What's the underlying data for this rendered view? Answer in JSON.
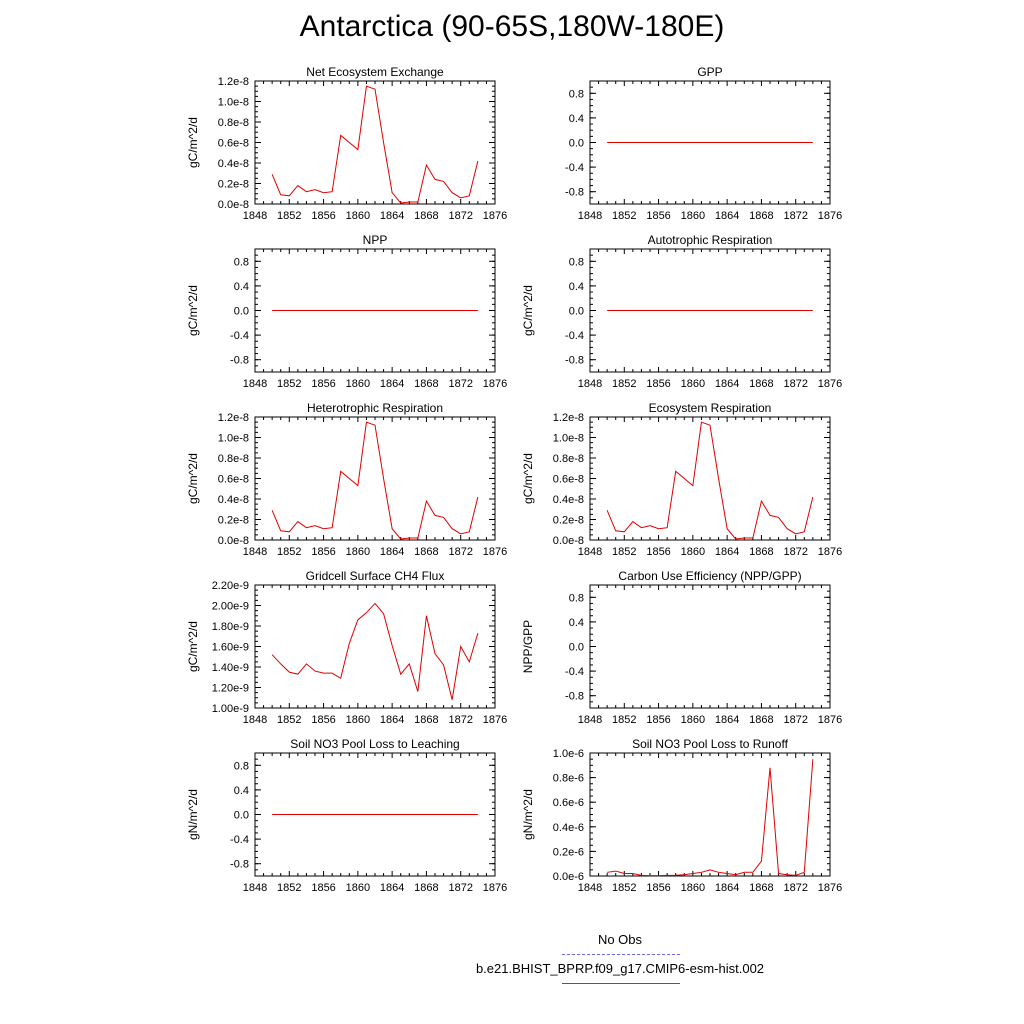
{
  "figure": {
    "title": "Antarctica (90-65S,180W-180E)",
    "legend": [
      {
        "label": "No Obs",
        "color": "#6a6ae6",
        "style": "dashed"
      },
      {
        "label": "b.e21.BHIST_BPRP.f09_g17.CMIP6-esm-hist.002",
        "color": "#e02020",
        "style": "solid"
      }
    ],
    "line_color": "#e00000"
  },
  "chart_data": [
    {
      "type": "line",
      "title": "Net Ecosystem Exchange",
      "ylabel": "gC/m^2/d",
      "xlim": [
        1848,
        1876
      ],
      "ylim": [
        0.0,
        1.2e-08
      ],
      "xticks": [
        "1848",
        "1852",
        "1856",
        "1860",
        "1864",
        "1868",
        "1872",
        "1876"
      ],
      "yticks": [
        0.0,
        2e-09,
        4e-09,
        6e-09,
        8e-09,
        1e-08,
        1.2e-08
      ],
      "yticklabels": [
        "0.0e-8",
        "0.2e-8",
        "0.4e-8",
        "0.6e-8",
        "0.8e-8",
        "1.0e-8",
        "1.2e-8"
      ],
      "x": [
        1850,
        1851,
        1852,
        1853,
        1854,
        1855,
        1856,
        1857,
        1858,
        1859,
        1860,
        1861,
        1862,
        1863,
        1864,
        1865,
        1866,
        1867,
        1868,
        1869,
        1870,
        1871,
        1872,
        1873,
        1874
      ],
      "y": [
        2.9e-09,
        9e-10,
        8e-10,
        1.8e-09,
        1.2e-09,
        1.4e-09,
        1.1e-09,
        1.2e-09,
        6.7e-09,
        6e-09,
        5.3e-09,
        1.15e-08,
        1.12e-08,
        6e-09,
        1.1e-09,
        1e-10,
        2e-10,
        2e-10,
        3.8e-09,
        2.4e-09,
        2.2e-09,
        1.1e-09,
        6e-10,
        8e-10,
        4.2e-09
      ]
    },
    {
      "type": "line",
      "title": "GPP",
      "ylabel": "",
      "xlim": [
        1848,
        1876
      ],
      "ylim": [
        -1.0,
        1.0
      ],
      "xticks": [
        "1848",
        "1852",
        "1856",
        "1860",
        "1864",
        "1868",
        "1872",
        "1876"
      ],
      "yticks": [
        -0.8,
        -0.4,
        0.0,
        0.4,
        0.8
      ],
      "yticklabels": [
        "-0.8",
        "-0.4",
        "0.0",
        "0.4",
        "0.8"
      ],
      "x": [
        1850,
        1874
      ],
      "y": [
        0,
        0
      ]
    },
    {
      "type": "line",
      "title": "NPP",
      "ylabel": "gC/m^2/d",
      "xlim": [
        1848,
        1876
      ],
      "ylim": [
        -1.0,
        1.0
      ],
      "xticks": [
        "1848",
        "1852",
        "1856",
        "1860",
        "1864",
        "1868",
        "1872",
        "1876"
      ],
      "yticks": [
        -0.8,
        -0.4,
        0.0,
        0.4,
        0.8
      ],
      "yticklabels": [
        "-0.8",
        "-0.4",
        "0.0",
        "0.4",
        "0.8"
      ],
      "x": [
        1850,
        1874
      ],
      "y": [
        0,
        0
      ]
    },
    {
      "type": "line",
      "title": "Autotrophic Respiration",
      "ylabel": "gC/m^2/d",
      "xlim": [
        1848,
        1876
      ],
      "ylim": [
        -1.0,
        1.0
      ],
      "xticks": [
        "1848",
        "1852",
        "1856",
        "1860",
        "1864",
        "1868",
        "1872",
        "1876"
      ],
      "yticks": [
        -0.8,
        -0.4,
        0.0,
        0.4,
        0.8
      ],
      "yticklabels": [
        "-0.8",
        "-0.4",
        "0.0",
        "0.4",
        "0.8"
      ],
      "x": [
        1850,
        1874
      ],
      "y": [
        0,
        0
      ]
    },
    {
      "type": "line",
      "title": "Heterotrophic Respiration",
      "ylabel": "gC/m^2/d",
      "xlim": [
        1848,
        1876
      ],
      "ylim": [
        0.0,
        1.2e-08
      ],
      "xticks": [
        "1848",
        "1852",
        "1856",
        "1860",
        "1864",
        "1868",
        "1872",
        "1876"
      ],
      "yticks": [
        0.0,
        2e-09,
        4e-09,
        6e-09,
        8e-09,
        1e-08,
        1.2e-08
      ],
      "yticklabels": [
        "0.0e-8",
        "0.2e-8",
        "0.4e-8",
        "0.6e-8",
        "0.8e-8",
        "1.0e-8",
        "1.2e-8"
      ],
      "x": [
        1850,
        1851,
        1852,
        1853,
        1854,
        1855,
        1856,
        1857,
        1858,
        1859,
        1860,
        1861,
        1862,
        1863,
        1864,
        1865,
        1866,
        1867,
        1868,
        1869,
        1870,
        1871,
        1872,
        1873,
        1874
      ],
      "y": [
        2.9e-09,
        9e-10,
        8e-10,
        1.8e-09,
        1.2e-09,
        1.4e-09,
        1.1e-09,
        1.2e-09,
        6.7e-09,
        6e-09,
        5.3e-09,
        1.15e-08,
        1.12e-08,
        6e-09,
        1.1e-09,
        1e-10,
        2e-10,
        2e-10,
        3.8e-09,
        2.4e-09,
        2.2e-09,
        1.1e-09,
        6e-10,
        8e-10,
        4.2e-09
      ]
    },
    {
      "type": "line",
      "title": "Ecosystem Respiration",
      "ylabel": "gC/m^2/d",
      "xlim": [
        1848,
        1876
      ],
      "ylim": [
        0.0,
        1.2e-08
      ],
      "xticks": [
        "1848",
        "1852",
        "1856",
        "1860",
        "1864",
        "1868",
        "1872",
        "1876"
      ],
      "yticks": [
        0.0,
        2e-09,
        4e-09,
        6e-09,
        8e-09,
        1e-08,
        1.2e-08
      ],
      "yticklabels": [
        "0.0e-8",
        "0.2e-8",
        "0.4e-8",
        "0.6e-8",
        "0.8e-8",
        "1.0e-8",
        "1.2e-8"
      ],
      "x": [
        1850,
        1851,
        1852,
        1853,
        1854,
        1855,
        1856,
        1857,
        1858,
        1859,
        1860,
        1861,
        1862,
        1863,
        1864,
        1865,
        1866,
        1867,
        1868,
        1869,
        1870,
        1871,
        1872,
        1873,
        1874
      ],
      "y": [
        2.9e-09,
        9e-10,
        8e-10,
        1.8e-09,
        1.2e-09,
        1.4e-09,
        1.1e-09,
        1.2e-09,
        6.7e-09,
        6e-09,
        5.3e-09,
        1.15e-08,
        1.12e-08,
        6e-09,
        1.1e-09,
        1e-10,
        2e-10,
        2e-10,
        3.8e-09,
        2.4e-09,
        2.2e-09,
        1.1e-09,
        6e-10,
        8e-10,
        4.2e-09
      ]
    },
    {
      "type": "line",
      "title": "Gridcell Surface CH4 Flux",
      "ylabel": "gC/m^2/d",
      "xlim": [
        1848,
        1876
      ],
      "ylim": [
        1e-09,
        2.2e-09
      ],
      "xticks": [
        "1848",
        "1852",
        "1856",
        "1860",
        "1864",
        "1868",
        "1872",
        "1876"
      ],
      "yticks": [
        1e-09,
        1.2e-09,
        1.4e-09,
        1.6e-09,
        1.8e-09,
        2e-09,
        2.2e-09
      ],
      "yticklabels": [
        "1.00e-9",
        "1.20e-9",
        "1.40e-9",
        "1.60e-9",
        "1.80e-9",
        "2.00e-9",
        "2.20e-9"
      ],
      "x": [
        1850,
        1851,
        1852,
        1853,
        1854,
        1855,
        1856,
        1857,
        1858,
        1859,
        1860,
        1861,
        1862,
        1863,
        1864,
        1865,
        1866,
        1867,
        1868,
        1869,
        1870,
        1871,
        1872,
        1873,
        1874
      ],
      "y": [
        1.52e-09,
        1.43e-09,
        1.35e-09,
        1.33e-09,
        1.43e-09,
        1.36e-09,
        1.34e-09,
        1.34e-09,
        1.29e-09,
        1.63e-09,
        1.86e-09,
        1.93e-09,
        2.02e-09,
        1.92e-09,
        1.61e-09,
        1.33e-09,
        1.43e-09,
        1.16e-09,
        1.9e-09,
        1.53e-09,
        1.42e-09,
        1.08e-09,
        1.6e-09,
        1.45e-09,
        1.73e-09
      ]
    },
    {
      "type": "line",
      "title": "Carbon Use Efficiency (NPP/GPP)",
      "ylabel": "NPP/GPP",
      "xlim": [
        1848,
        1876
      ],
      "ylim": [
        -1.0,
        1.0
      ],
      "xticks": [
        "1848",
        "1852",
        "1856",
        "1860",
        "1864",
        "1868",
        "1872",
        "1876"
      ],
      "yticks": [
        -0.8,
        -0.4,
        0.0,
        0.4,
        0.8
      ],
      "yticklabels": [
        "-0.8",
        "-0.4",
        "0.0",
        "0.4",
        "0.8"
      ],
      "x": [],
      "y": []
    },
    {
      "type": "line",
      "title": "Soil NO3 Pool Loss to Leaching",
      "ylabel": "gN/m^2/d",
      "xlim": [
        1848,
        1876
      ],
      "ylim": [
        -1.0,
        1.0
      ],
      "xticks": [
        "1848",
        "1852",
        "1856",
        "1860",
        "1864",
        "1868",
        "1872",
        "1876"
      ],
      "yticks": [
        -0.8,
        -0.4,
        0.0,
        0.4,
        0.8
      ],
      "yticklabels": [
        "-0.8",
        "-0.4",
        "0.0",
        "0.4",
        "0.8"
      ],
      "x": [
        1850,
        1874
      ],
      "y": [
        0,
        0
      ]
    },
    {
      "type": "line",
      "title": "Soil NO3 Pool Loss to Runoff",
      "ylabel": "gN/m^2/d",
      "xlim": [
        1848,
        1876
      ],
      "ylim": [
        0.0,
        1e-06
      ],
      "xticks": [
        "1848",
        "1852",
        "1856",
        "1860",
        "1864",
        "1868",
        "1872",
        "1876"
      ],
      "yticks": [
        0.0,
        2e-07,
        4e-07,
        6e-07,
        8e-07,
        1e-06
      ],
      "yticklabels": [
        "0.0e-6",
        "0.2e-6",
        "0.4e-6",
        "0.6e-6",
        "0.8e-6",
        "1.0e-6"
      ],
      "x": [
        1850,
        1851,
        1852,
        1853,
        1854,
        1855,
        1856,
        1857,
        1858,
        1859,
        1860,
        1861,
        1862,
        1863,
        1864,
        1865,
        1866,
        1867,
        1868,
        1869,
        1870,
        1871,
        1872,
        1873,
        1874
      ],
      "y": [
        3e-08,
        4e-08,
        2e-08,
        2e-08,
        5e-09,
        3e-09,
        3e-09,
        5e-09,
        6e-09,
        1e-08,
        2e-08,
        3e-08,
        5e-08,
        3e-08,
        2e-08,
        1e-08,
        3e-08,
        3e-08,
        1.2e-07,
        8.8e-07,
        2e-08,
        1e-08,
        5e-09,
        3e-08,
        9.5e-07
      ]
    }
  ]
}
